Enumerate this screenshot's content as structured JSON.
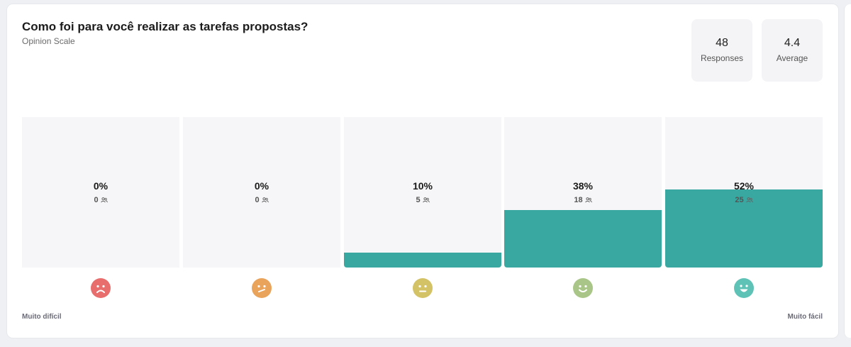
{
  "question": {
    "title": "Como foi para você realizar as tarefas propostas?",
    "type": "Opinion Scale"
  },
  "stats": {
    "responses": {
      "value": "48",
      "label": "Responses"
    },
    "average": {
      "value": "4.4",
      "label": "Average"
    }
  },
  "chart_data": {
    "type": "bar",
    "categories": [
      "1",
      "2",
      "3",
      "4",
      "5"
    ],
    "percent_labels": [
      "0%",
      "0%",
      "10%",
      "38%",
      "52%"
    ],
    "percents": [
      0,
      0,
      10,
      38,
      52
    ],
    "counts": [
      0,
      0,
      5,
      18,
      25
    ],
    "ylim": [
      0,
      100
    ],
    "bar_color": "#38a8a1",
    "faces": [
      {
        "icon": "sad-face-icon",
        "color": "#e86d6d"
      },
      {
        "icon": "confused-face-icon",
        "color": "#eaa35a"
      },
      {
        "icon": "neutral-face-icon",
        "color": "#d4c266"
      },
      {
        "icon": "smile-face-icon",
        "color": "#a9c688"
      },
      {
        "icon": "grin-face-icon",
        "color": "#5fc2b6"
      }
    ],
    "scale_min_label": "Muito difícil",
    "scale_max_label": "Muito fácil"
  }
}
